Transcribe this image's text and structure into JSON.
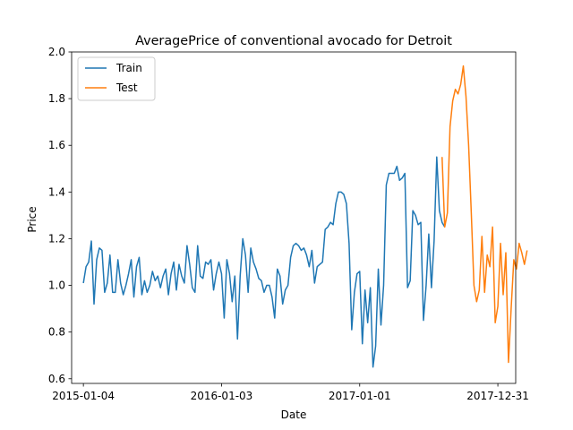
{
  "chart_data": {
    "type": "line",
    "title": "AveragePrice of conventional avocado for Detroit",
    "xlabel": "Date",
    "ylabel": "Price",
    "x_range": [
      "2014-12-04",
      "2018-02-16"
    ],
    "ylim": [
      0.58,
      2.0
    ],
    "y_ticks": [
      0.6,
      0.8,
      1.0,
      1.2,
      1.4,
      1.6,
      1.8,
      2.0
    ],
    "y_tick_labels": [
      "0.6",
      "0.8",
      "1.0",
      "1.2",
      "1.4",
      "1.6",
      "1.8",
      "2.0"
    ],
    "x_ticks": [
      "2015-01-04",
      "2016-01-03",
      "2017-01-01",
      "2017-12-31"
    ],
    "x_tick_labels": [
      "2015-01-04",
      "2016-01-03",
      "2017-01-01",
      "2017-12-31"
    ],
    "legend": {
      "placement": "upper-left",
      "entries": [
        "Train",
        "Test"
      ]
    },
    "grid": false,
    "series": [
      {
        "name": "Train",
        "color": "#1f77b4",
        "start": "2015-01-04",
        "step_days": 7,
        "values": [
          1.01,
          1.08,
          1.1,
          1.19,
          0.92,
          1.11,
          1.16,
          1.15,
          0.97,
          1.01,
          1.13,
          0.97,
          0.97,
          1.11,
          1.01,
          0.96,
          1.0,
          1.05,
          1.11,
          0.95,
          1.08,
          1.12,
          0.96,
          1.02,
          0.97,
          1.0,
          1.06,
          1.02,
          1.04,
          0.99,
          1.04,
          1.07,
          0.96,
          1.05,
          1.1,
          0.98,
          1.09,
          1.04,
          1.01,
          1.17,
          1.09,
          0.99,
          0.97,
          1.17,
          1.04,
          1.03,
          1.1,
          1.09,
          1.11,
          0.98,
          1.05,
          1.1,
          1.05,
          0.86,
          1.11,
          1.05,
          0.93,
          1.04,
          0.77,
          1.04,
          1.2,
          1.13,
          0.97,
          1.16,
          1.1,
          1.07,
          1.03,
          1.02,
          0.97,
          1.0,
          1.0,
          0.95,
          0.86,
          1.07,
          1.04,
          0.92,
          0.98,
          1.0,
          1.12,
          1.17,
          1.18,
          1.17,
          1.15,
          1.16,
          1.13,
          1.08,
          1.15,
          1.01,
          1.08,
          1.09,
          1.1,
          1.24,
          1.25,
          1.27,
          1.26,
          1.35,
          1.4,
          1.4,
          1.39,
          1.35,
          1.18,
          0.81,
          0.97,
          1.05,
          1.06,
          0.75,
          0.98,
          0.84,
          0.99,
          0.65,
          0.74,
          1.07,
          0.83,
          1.0,
          1.43,
          1.48,
          1.48,
          1.48,
          1.51,
          1.45,
          1.46,
          1.48,
          0.99,
          1.02,
          1.32,
          1.3,
          1.26,
          1.27,
          0.85,
          1.0,
          1.22,
          0.99,
          1.19,
          1.55,
          1.32,
          1.27,
          1.25
        ]
      },
      {
        "name": "Test",
        "color": "#ff7f0e",
        "start": "2017-08-06",
        "step_days": 7,
        "values": [
          1.55,
          1.25,
          1.31,
          1.68,
          1.79,
          1.84,
          1.82,
          1.86,
          1.94,
          1.81,
          1.6,
          1.31,
          1.0,
          0.93,
          0.98,
          1.21,
          0.97,
          1.13,
          1.08,
          1.25,
          0.84,
          0.91,
          1.18,
          0.96,
          1.14,
          0.67,
          0.9,
          1.11,
          1.07,
          1.18,
          1.14,
          1.09,
          1.15
        ]
      }
    ]
  }
}
